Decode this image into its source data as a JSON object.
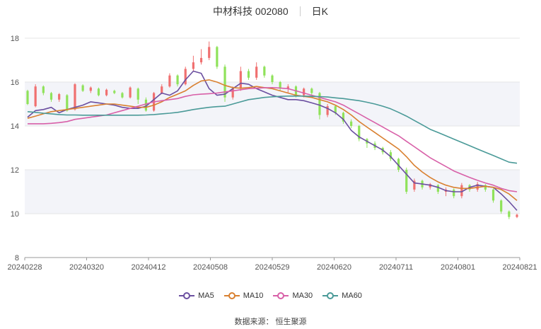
{
  "header": {
    "stock": "中材科技 002080",
    "period": "日K"
  },
  "source": "数据来源： 恒生聚源",
  "chart_data": {
    "type": "candlestick",
    "ylim": [
      8,
      18
    ],
    "yticks": [
      "8",
      "10",
      "12",
      "14",
      "16",
      "18"
    ],
    "xticks": [
      "20240228",
      "20240320",
      "20240412",
      "20240508",
      "20240529",
      "20240620",
      "20240711",
      "20240801",
      "20240821"
    ],
    "up_color": "#f07070",
    "down_color": "#8fe25a",
    "series": [
      {
        "name": "MA5",
        "color": "#6b4fa0",
        "values": [
          14.4,
          14.7,
          14.75,
          14.85,
          14.6,
          14.75,
          14.85,
          14.95,
          15.1,
          15.05,
          15.0,
          14.95,
          14.85,
          14.8,
          14.8,
          14.9,
          15.2,
          15.5,
          15.4,
          15.6,
          16.1,
          16.5,
          16.4,
          15.7,
          15.4,
          15.45,
          15.7,
          15.95,
          15.9,
          15.7,
          15.55,
          15.4,
          15.3,
          15.2,
          15.2,
          15.15,
          15.05,
          14.95,
          14.8,
          14.6,
          14.3,
          13.8,
          13.5,
          13.3,
          13.1,
          12.9,
          12.6,
          12.2,
          11.8,
          11.4,
          11.35,
          11.3,
          11.2,
          11.05,
          11.0,
          11.0,
          11.2,
          11.3,
          11.25,
          11.2,
          10.9,
          10.55,
          10.15
        ]
      },
      {
        "name": "MA10",
        "color": "#d98030",
        "values": [
          14.35,
          14.45,
          14.55,
          14.65,
          14.7,
          14.75,
          14.8,
          14.85,
          14.9,
          14.95,
          15.0,
          15.0,
          14.95,
          14.9,
          14.85,
          14.85,
          14.95,
          15.1,
          15.3,
          15.45,
          15.6,
          15.85,
          16.05,
          16.1,
          16.0,
          15.85,
          15.75,
          15.72,
          15.75,
          15.8,
          15.75,
          15.7,
          15.6,
          15.5,
          15.4,
          15.35,
          15.3,
          15.2,
          15.1,
          14.95,
          14.75,
          14.5,
          14.2,
          13.95,
          13.7,
          13.45,
          13.2,
          12.95,
          12.6,
          12.2,
          11.9,
          11.65,
          11.45,
          11.3,
          11.2,
          11.15,
          11.15,
          11.2,
          11.25,
          11.2,
          11.1,
          10.9,
          10.6
        ]
      },
      {
        "name": "MA30",
        "color": "#d860a8",
        "values": [
          14.1,
          14.1,
          14.1,
          14.12,
          14.15,
          14.2,
          14.3,
          14.35,
          14.4,
          14.45,
          14.5,
          14.6,
          14.7,
          14.8,
          14.9,
          15.0,
          15.1,
          15.15,
          15.2,
          15.25,
          15.35,
          15.42,
          15.45,
          15.47,
          15.5,
          15.55,
          15.6,
          15.65,
          15.7,
          15.72,
          15.74,
          15.75,
          15.73,
          15.7,
          15.6,
          15.5,
          15.4,
          15.3,
          15.2,
          15.1,
          14.95,
          14.75,
          14.55,
          14.35,
          14.15,
          13.95,
          13.75,
          13.55,
          13.3,
          13.05,
          12.8,
          12.55,
          12.35,
          12.15,
          11.95,
          11.8,
          11.65,
          11.52,
          11.4,
          11.3,
          11.15,
          11.05,
          11.0
        ]
      },
      {
        "name": "MA60",
        "color": "#4a9a98",
        "values": [
          14.65,
          14.62,
          14.58,
          14.55,
          14.52,
          14.5,
          14.5,
          14.49,
          14.49,
          14.49,
          14.49,
          14.49,
          14.49,
          14.49,
          14.49,
          14.5,
          14.52,
          14.55,
          14.58,
          14.62,
          14.68,
          14.75,
          14.8,
          14.85,
          14.88,
          14.9,
          15.0,
          15.1,
          15.2,
          15.25,
          15.3,
          15.33,
          15.35,
          15.36,
          15.36,
          15.36,
          15.35,
          15.34,
          15.32,
          15.28,
          15.25,
          15.2,
          15.15,
          15.08,
          15.0,
          14.9,
          14.78,
          14.62,
          14.45,
          14.25,
          14.05,
          13.85,
          13.7,
          13.55,
          13.4,
          13.25,
          13.1,
          12.95,
          12.8,
          12.65,
          12.5,
          12.35,
          12.3
        ]
      }
    ],
    "candles": [
      [
        15.6,
        15.0,
        15.65,
        14.95
      ],
      [
        14.9,
        15.8,
        15.9,
        14.85
      ],
      [
        15.8,
        15.5,
        15.85,
        15.4
      ],
      [
        15.5,
        15.2,
        15.55,
        15.1
      ],
      [
        15.2,
        15.45,
        15.5,
        15.1
      ],
      [
        15.4,
        14.7,
        15.45,
        14.65
      ],
      [
        14.75,
        15.9,
        15.95,
        14.7
      ],
      [
        15.85,
        15.6,
        15.9,
        15.55
      ],
      [
        15.6,
        15.75,
        15.8,
        15.5
      ],
      [
        15.7,
        15.4,
        15.75,
        15.35
      ],
      [
        15.4,
        15.65,
        15.7,
        15.35
      ],
      [
        15.6,
        15.5,
        15.65,
        15.45
      ],
      [
        15.5,
        15.3,
        15.55,
        15.25
      ],
      [
        15.3,
        15.75,
        15.8,
        15.25
      ],
      [
        15.7,
        15.2,
        15.75,
        15.0
      ],
      [
        15.2,
        14.7,
        15.3,
        14.65
      ],
      [
        14.7,
        15.5,
        15.55,
        14.65
      ],
      [
        15.5,
        15.8,
        15.9,
        15.45
      ],
      [
        15.8,
        16.3,
        16.4,
        15.75
      ],
      [
        16.3,
        15.9,
        16.35,
        15.8
      ],
      [
        15.9,
        16.6,
        16.7,
        15.85
      ],
      [
        16.6,
        16.9,
        17.2,
        16.5
      ],
      [
        16.9,
        17.1,
        17.5,
        16.8
      ],
      [
        17.1,
        17.6,
        17.85,
        17.0
      ],
      [
        17.6,
        16.7,
        17.65,
        16.6
      ],
      [
        16.7,
        15.3,
        16.8,
        15.1
      ],
      [
        15.3,
        15.7,
        15.8,
        15.2
      ],
      [
        15.7,
        16.5,
        16.7,
        15.6
      ],
      [
        16.5,
        16.2,
        16.6,
        16.1
      ],
      [
        16.2,
        16.7,
        16.9,
        16.1
      ],
      [
        16.7,
        16.3,
        16.75,
        16.2
      ],
      [
        16.3,
        16.0,
        16.35,
        15.9
      ],
      [
        16.0,
        15.7,
        16.05,
        15.6
      ],
      [
        15.7,
        15.8,
        15.9,
        15.5
      ],
      [
        15.8,
        15.4,
        15.85,
        15.3
      ],
      [
        15.4,
        15.7,
        15.75,
        15.3
      ],
      [
        15.7,
        15.5,
        15.75,
        15.4
      ],
      [
        15.5,
        14.5,
        15.55,
        14.3
      ],
      [
        14.5,
        14.9,
        15.0,
        14.4
      ],
      [
        14.9,
        14.6,
        14.95,
        14.5
      ],
      [
        14.6,
        14.2,
        14.65,
        14.1
      ],
      [
        14.2,
        14.0,
        14.3,
        13.9
      ],
      [
        14.0,
        13.4,
        14.05,
        13.3
      ],
      [
        13.4,
        13.2,
        13.45,
        13.0
      ],
      [
        13.2,
        13.0,
        13.3,
        12.9
      ],
      [
        13.0,
        12.8,
        13.05,
        12.7
      ],
      [
        12.8,
        12.5,
        12.9,
        12.4
      ],
      [
        12.5,
        12.0,
        12.55,
        11.9
      ],
      [
        12.0,
        11.0,
        12.1,
        10.9
      ],
      [
        11.1,
        11.5,
        11.6,
        11.0
      ],
      [
        11.5,
        11.2,
        11.55,
        11.1
      ],
      [
        11.2,
        11.35,
        11.4,
        11.1
      ],
      [
        11.3,
        11.0,
        11.35,
        10.9
      ],
      [
        11.0,
        11.1,
        11.2,
        10.8
      ],
      [
        11.1,
        10.8,
        11.15,
        10.7
      ],
      [
        10.8,
        11.3,
        11.4,
        10.7
      ],
      [
        11.3,
        11.1,
        11.35,
        11.0
      ],
      [
        11.1,
        11.35,
        11.45,
        11.0
      ],
      [
        11.3,
        11.1,
        11.35,
        11.0
      ],
      [
        11.1,
        10.6,
        11.15,
        10.5
      ],
      [
        10.6,
        10.1,
        10.65,
        10.0
      ],
      [
        10.1,
        9.85,
        10.15,
        9.75
      ],
      [
        9.85,
        9.95,
        10.0,
        9.8
      ]
    ]
  },
  "legend": {
    "colors": [
      "#6b4fa0",
      "#d98030",
      "#d860a8",
      "#4a9a98"
    ],
    "labels": [
      "MA5",
      "MA10",
      "MA30",
      "MA60"
    ]
  }
}
